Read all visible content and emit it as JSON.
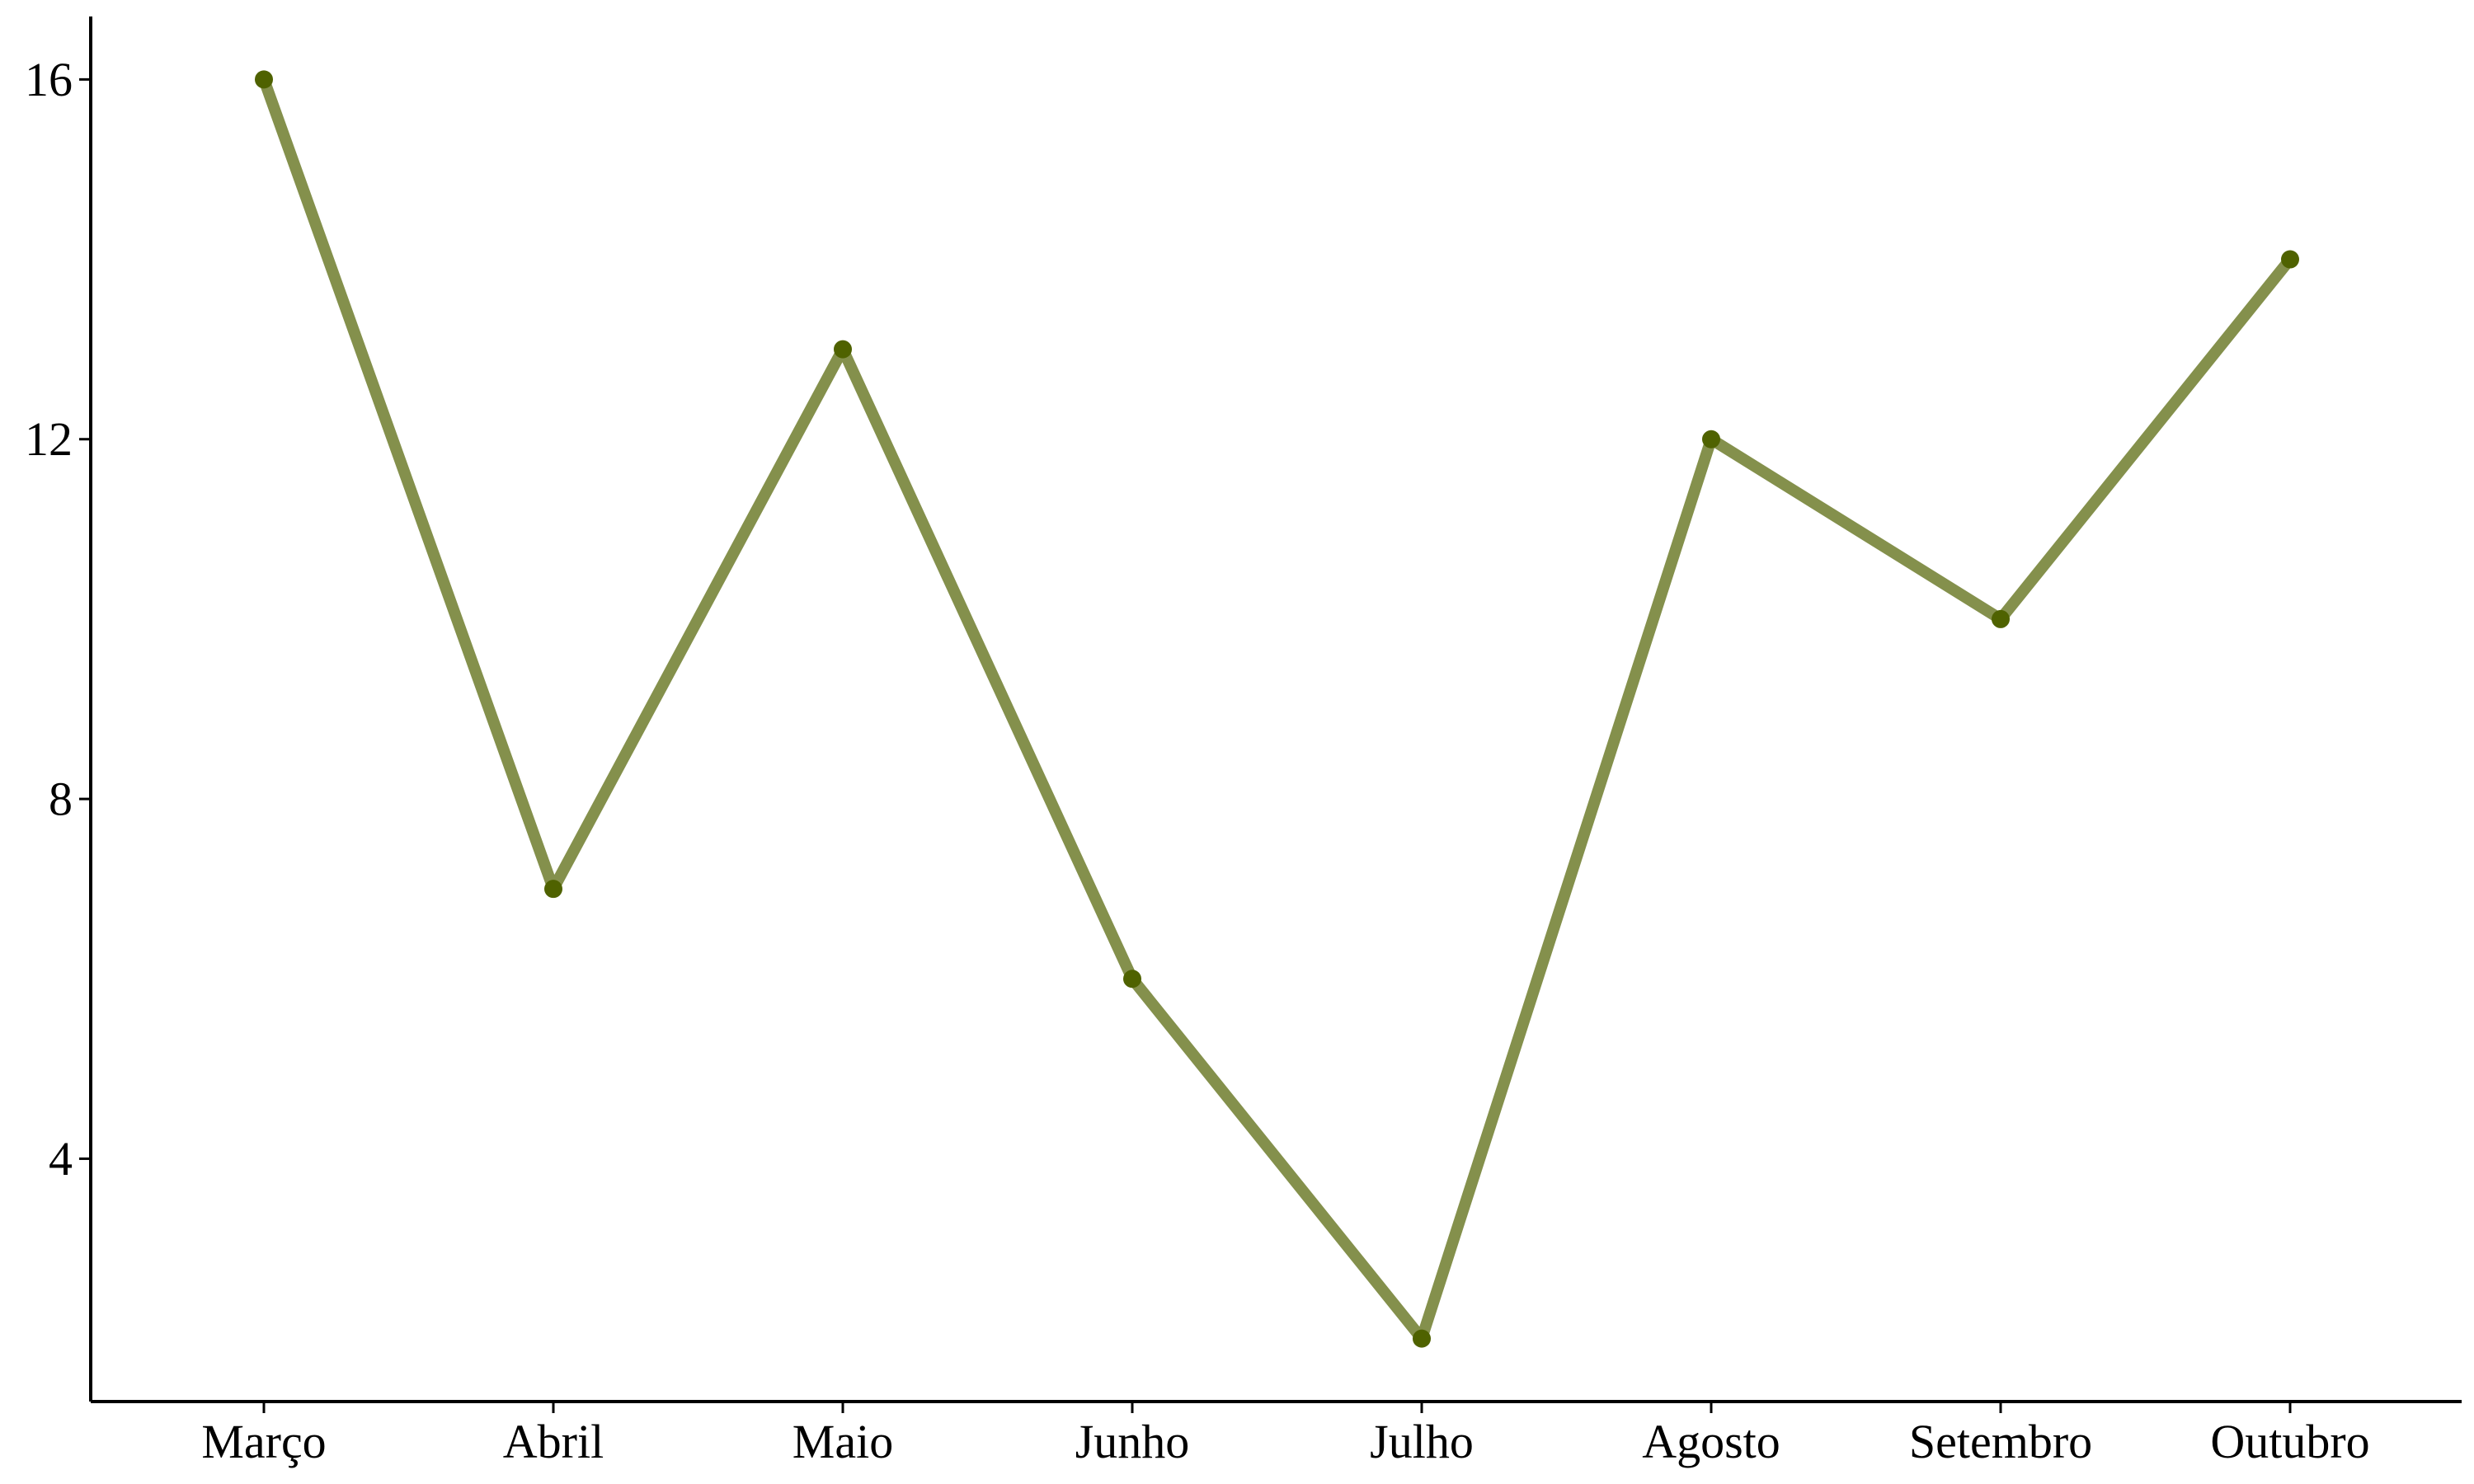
{
  "chart_data": {
    "type": "line",
    "title": "",
    "xlabel": "",
    "ylabel": "",
    "categories": [
      "Março",
      "Abril",
      "Maio",
      "Junho",
      "Julho",
      "Agosto",
      "Setembro",
      "Outubro"
    ],
    "series": [
      {
        "values": [
          16,
          7,
          13,
          6,
          2,
          12,
          10,
          14
        ],
        "line_color": "#84904c",
        "point_color": "#4f6200"
      }
    ],
    "ylim": [
      1.3,
      16.7
    ],
    "yticks": [
      4,
      8,
      12,
      16
    ],
    "grid": false,
    "legend": "none"
  }
}
